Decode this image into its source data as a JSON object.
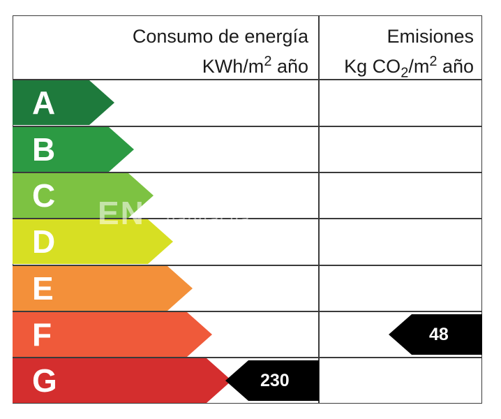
{
  "header": {
    "energy_line1": "Consumo de energía",
    "energy_line2_prefix": "KWh/m",
    "energy_line2_sup": "2",
    "energy_line2_suffix": " año",
    "emissions_line1": "Emisiones",
    "emissions_line2_prefix": "Kg CO",
    "emissions_line2_sub": "2",
    "emissions_line2_mid": "/m",
    "emissions_line2_sup": "2",
    "emissions_line2_suffix": " año"
  },
  "ratings": [
    {
      "letter": "A",
      "color": "#1e7a3c"
    },
    {
      "letter": "B",
      "color": "#2c9a43"
    },
    {
      "letter": "C",
      "color": "#7dc242"
    },
    {
      "letter": "D",
      "color": "#d7df23"
    },
    {
      "letter": "E",
      "color": "#f3903a"
    },
    {
      "letter": "F",
      "color": "#ef5a3a"
    },
    {
      "letter": "G",
      "color": "#d42e2e"
    }
  ],
  "energy": {
    "value": "230",
    "rating": "G"
  },
  "emissions": {
    "value": "48",
    "rating": "F"
  },
  "watermark": {
    "text": "EN",
    "brand": "habitaclia"
  }
}
